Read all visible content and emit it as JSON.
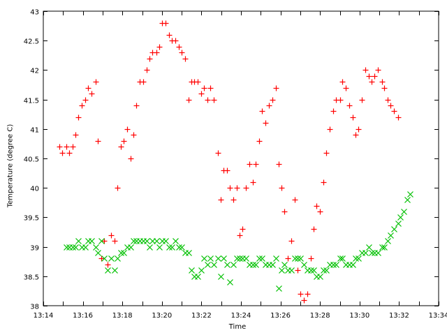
{
  "chart_data": {
    "type": "scatter",
    "title": "",
    "xlabel": "Time",
    "ylabel": "Temperature (degree C)",
    "xlim": [
      "13:14",
      "13:34"
    ],
    "ylim": [
      38,
      43
    ],
    "x_ticks": [
      "13:14",
      "13:16",
      "13:18",
      "13:20",
      "13:22",
      "13:24",
      "13:26",
      "13:28",
      "13:30",
      "13:32",
      "13:34"
    ],
    "y_ticks": [
      "38",
      "38.5",
      "39",
      "39.5",
      "40",
      "40.5",
      "41",
      "41.5",
      "42",
      "42.5",
      "43"
    ],
    "grid": false,
    "legend": "none",
    "series": [
      {
        "marker": "plus",
        "color": "#ff0000",
        "points": [
          [
            "13:14:49",
            40.7
          ],
          [
            "13:14:58",
            40.6
          ],
          [
            "13:15:09",
            40.7
          ],
          [
            "13:15:19",
            40.6
          ],
          [
            "13:15:28",
            40.7
          ],
          [
            "13:15:38",
            40.9
          ],
          [
            "13:15:47",
            41.2
          ],
          [
            "13:15:57",
            41.4
          ],
          [
            "13:16:07",
            41.5
          ],
          [
            "13:16:16",
            41.7
          ],
          [
            "13:16:26",
            41.6
          ],
          [
            "13:16:38",
            41.8
          ],
          [
            "13:16:46",
            40.8
          ],
          [
            "13:16:57",
            38.8
          ],
          [
            "13:17:05",
            39.1
          ],
          [
            "13:17:16",
            38.7
          ],
          [
            "13:17:26",
            39.2
          ],
          [
            "13:17:36",
            39.1
          ],
          [
            "13:17:45",
            40.0
          ],
          [
            "13:17:55",
            40.7
          ],
          [
            "13:18:04",
            40.8
          ],
          [
            "13:18:15",
            41.0
          ],
          [
            "13:18:24",
            40.5
          ],
          [
            "13:18:34",
            40.9
          ],
          [
            "13:18:43",
            41.4
          ],
          [
            "13:18:53",
            41.8
          ],
          [
            "13:19:04",
            41.8
          ],
          [
            "13:19:13",
            42.0
          ],
          [
            "13:19:23",
            42.2
          ],
          [
            "13:19:31",
            42.3
          ],
          [
            "13:19:43",
            42.3
          ],
          [
            "13:19:53",
            42.4
          ],
          [
            "13:20:00",
            42.8
          ],
          [
            "13:20:12",
            42.8
          ],
          [
            "13:20:21",
            42.6
          ],
          [
            "13:20:30",
            42.5
          ],
          [
            "13:20:41",
            42.5
          ],
          [
            "13:20:51",
            42.4
          ],
          [
            "13:21:00",
            42.3
          ],
          [
            "13:21:11",
            42.2
          ],
          [
            "13:21:20",
            41.5
          ],
          [
            "13:21:29",
            41.8
          ],
          [
            "13:21:39",
            41.8
          ],
          [
            "13:21:49",
            41.8
          ],
          [
            "13:21:59",
            41.6
          ],
          [
            "13:22:08",
            41.7
          ],
          [
            "13:22:19",
            41.5
          ],
          [
            "13:22:27",
            41.7
          ],
          [
            "13:22:38",
            41.5
          ],
          [
            "13:22:49",
            40.6
          ],
          [
            "13:22:58",
            39.8
          ],
          [
            "13:23:07",
            40.3
          ],
          [
            "13:23:17",
            40.3
          ],
          [
            "13:23:27",
            40.0
          ],
          [
            "13:23:37",
            39.8
          ],
          [
            "13:23:47",
            40.0
          ],
          [
            "13:23:56",
            39.2
          ],
          [
            "13:24:05",
            39.3
          ],
          [
            "13:24:15",
            40.0
          ],
          [
            "13:24:26",
            40.4
          ],
          [
            "13:24:35",
            40.1
          ],
          [
            "13:24:45",
            40.4
          ],
          [
            "13:24:56",
            40.8
          ],
          [
            "13:25:04",
            41.3
          ],
          [
            "13:25:15",
            41.1
          ],
          [
            "13:25:24",
            41.4
          ],
          [
            "13:25:35",
            41.5
          ],
          [
            "13:25:45",
            41.7
          ],
          [
            "13:25:54",
            40.4
          ],
          [
            "13:26:04",
            40.0
          ],
          [
            "13:26:12",
            39.6
          ],
          [
            "13:26:23",
            38.8
          ],
          [
            "13:26:33",
            39.1
          ],
          [
            "13:26:43",
            39.8
          ],
          [
            "13:26:52",
            38.6
          ],
          [
            "13:27:01",
            38.2
          ],
          [
            "13:27:11",
            38.1
          ],
          [
            "13:27:22",
            38.2
          ],
          [
            "13:27:31",
            38.8
          ],
          [
            "13:27:40",
            39.3
          ],
          [
            "13:27:50",
            39.7
          ],
          [
            "13:28:00",
            39.6
          ],
          [
            "13:28:10",
            40.1
          ],
          [
            "13:28:19",
            40.6
          ],
          [
            "13:28:30",
            41.0
          ],
          [
            "13:28:40",
            41.3
          ],
          [
            "13:28:49",
            41.5
          ],
          [
            "13:29:00",
            41.5
          ],
          [
            "13:29:07",
            41.8
          ],
          [
            "13:29:19",
            41.7
          ],
          [
            "13:29:29",
            41.4
          ],
          [
            "13:29:39",
            41.2
          ],
          [
            "13:29:48",
            40.9
          ],
          [
            "13:29:57",
            41.0
          ],
          [
            "13:30:07",
            41.5
          ],
          [
            "13:30:18",
            42.0
          ],
          [
            "13:30:27",
            41.9
          ],
          [
            "13:30:37",
            41.8
          ],
          [
            "13:30:46",
            41.9
          ],
          [
            "13:30:56",
            42.0
          ],
          [
            "13:31:08",
            41.8
          ],
          [
            "13:31:15",
            41.7
          ],
          [
            "13:31:26",
            41.5
          ],
          [
            "13:31:34",
            41.4
          ],
          [
            "13:31:45",
            41.3
          ],
          [
            "13:31:56",
            41.2
          ]
        ]
      },
      {
        "marker": "cross",
        "color": "#00c000",
        "points": [
          [
            "13:15:09",
            39.0
          ],
          [
            "13:15:19",
            39.0
          ],
          [
            "13:15:28",
            39.0
          ],
          [
            "13:15:38",
            39.0
          ],
          [
            "13:15:47",
            39.1
          ],
          [
            "13:15:57",
            39.0
          ],
          [
            "13:16:07",
            39.0
          ],
          [
            "13:16:16",
            39.1
          ],
          [
            "13:16:26",
            39.1
          ],
          [
            "13:16:38",
            39.0
          ],
          [
            "13:16:46",
            38.9
          ],
          [
            "13:16:57",
            39.1
          ],
          [
            "13:17:05",
            38.8
          ],
          [
            "13:17:16",
            38.6
          ],
          [
            "13:17:26",
            38.8
          ],
          [
            "13:17:36",
            38.6
          ],
          [
            "13:17:45",
            38.8
          ],
          [
            "13:17:55",
            38.9
          ],
          [
            "13:18:04",
            38.9
          ],
          [
            "13:18:15",
            39.0
          ],
          [
            "13:18:24",
            39.0
          ],
          [
            "13:18:34",
            39.1
          ],
          [
            "13:18:43",
            39.1
          ],
          [
            "13:18:53",
            39.1
          ],
          [
            "13:19:04",
            39.1
          ],
          [
            "13:19:13",
            39.1
          ],
          [
            "13:19:23",
            39.0
          ],
          [
            "13:19:31",
            39.1
          ],
          [
            "13:19:43",
            39.1
          ],
          [
            "13:19:53",
            39.0
          ],
          [
            "13:20:00",
            39.1
          ],
          [
            "13:20:12",
            39.1
          ],
          [
            "13:20:21",
            39.0
          ],
          [
            "13:20:30",
            39.0
          ],
          [
            "13:20:41",
            39.1
          ],
          [
            "13:20:51",
            39.0
          ],
          [
            "13:21:00",
            39.0
          ],
          [
            "13:21:11",
            38.9
          ],
          [
            "13:21:20",
            38.9
          ],
          [
            "13:21:29",
            38.6
          ],
          [
            "13:21:39",
            38.5
          ],
          [
            "13:21:49",
            38.5
          ],
          [
            "13:21:59",
            38.6
          ],
          [
            "13:22:08",
            38.8
          ],
          [
            "13:22:19",
            38.7
          ],
          [
            "13:22:27",
            38.8
          ],
          [
            "13:22:38",
            38.7
          ],
          [
            "13:22:49",
            38.8
          ],
          [
            "13:22:58",
            38.5
          ],
          [
            "13:23:07",
            38.8
          ],
          [
            "13:23:17",
            38.7
          ],
          [
            "13:23:27",
            38.4
          ],
          [
            "13:23:37",
            38.7
          ],
          [
            "13:23:47",
            38.8
          ],
          [
            "13:23:56",
            38.8
          ],
          [
            "13:24:05",
            38.8
          ],
          [
            "13:24:15",
            38.8
          ],
          [
            "13:24:26",
            38.7
          ],
          [
            "13:24:35",
            38.7
          ],
          [
            "13:24:45",
            38.7
          ],
          [
            "13:24:56",
            38.8
          ],
          [
            "13:25:04",
            38.8
          ],
          [
            "13:25:15",
            38.7
          ],
          [
            "13:25:24",
            38.7
          ],
          [
            "13:25:35",
            38.7
          ],
          [
            "13:25:45",
            38.8
          ],
          [
            "13:25:54",
            38.3
          ],
          [
            "13:26:04",
            38.6
          ],
          [
            "13:26:12",
            38.7
          ],
          [
            "13:26:23",
            38.6
          ],
          [
            "13:26:33",
            38.6
          ],
          [
            "13:26:43",
            38.8
          ],
          [
            "13:26:52",
            38.8
          ],
          [
            "13:27:01",
            38.8
          ],
          [
            "13:27:11",
            38.7
          ],
          [
            "13:27:22",
            38.6
          ],
          [
            "13:27:31",
            38.6
          ],
          [
            "13:27:40",
            38.6
          ],
          [
            "13:27:50",
            38.5
          ],
          [
            "13:28:00",
            38.5
          ],
          [
            "13:28:10",
            38.6
          ],
          [
            "13:28:19",
            38.6
          ],
          [
            "13:28:30",
            38.7
          ],
          [
            "13:28:40",
            38.7
          ],
          [
            "13:28:49",
            38.7
          ],
          [
            "13:29:00",
            38.8
          ],
          [
            "13:29:07",
            38.8
          ],
          [
            "13:29:19",
            38.7
          ],
          [
            "13:29:29",
            38.7
          ],
          [
            "13:29:39",
            38.7
          ],
          [
            "13:29:48",
            38.8
          ],
          [
            "13:29:57",
            38.8
          ],
          [
            "13:30:07",
            38.9
          ],
          [
            "13:30:18",
            38.9
          ],
          [
            "13:30:27",
            39.0
          ],
          [
            "13:30:37",
            38.9
          ],
          [
            "13:30:46",
            38.9
          ],
          [
            "13:30:56",
            38.9
          ],
          [
            "13:31:08",
            39.0
          ],
          [
            "13:31:15",
            39.0
          ],
          [
            "13:31:26",
            39.1
          ],
          [
            "13:31:34",
            39.2
          ],
          [
            "13:31:45",
            39.3
          ],
          [
            "13:31:56",
            39.4
          ],
          [
            "13:32:04",
            39.5
          ],
          [
            "13:32:15",
            39.6
          ],
          [
            "13:32:25",
            39.8
          ],
          [
            "13:32:34",
            39.9
          ]
        ]
      }
    ]
  }
}
